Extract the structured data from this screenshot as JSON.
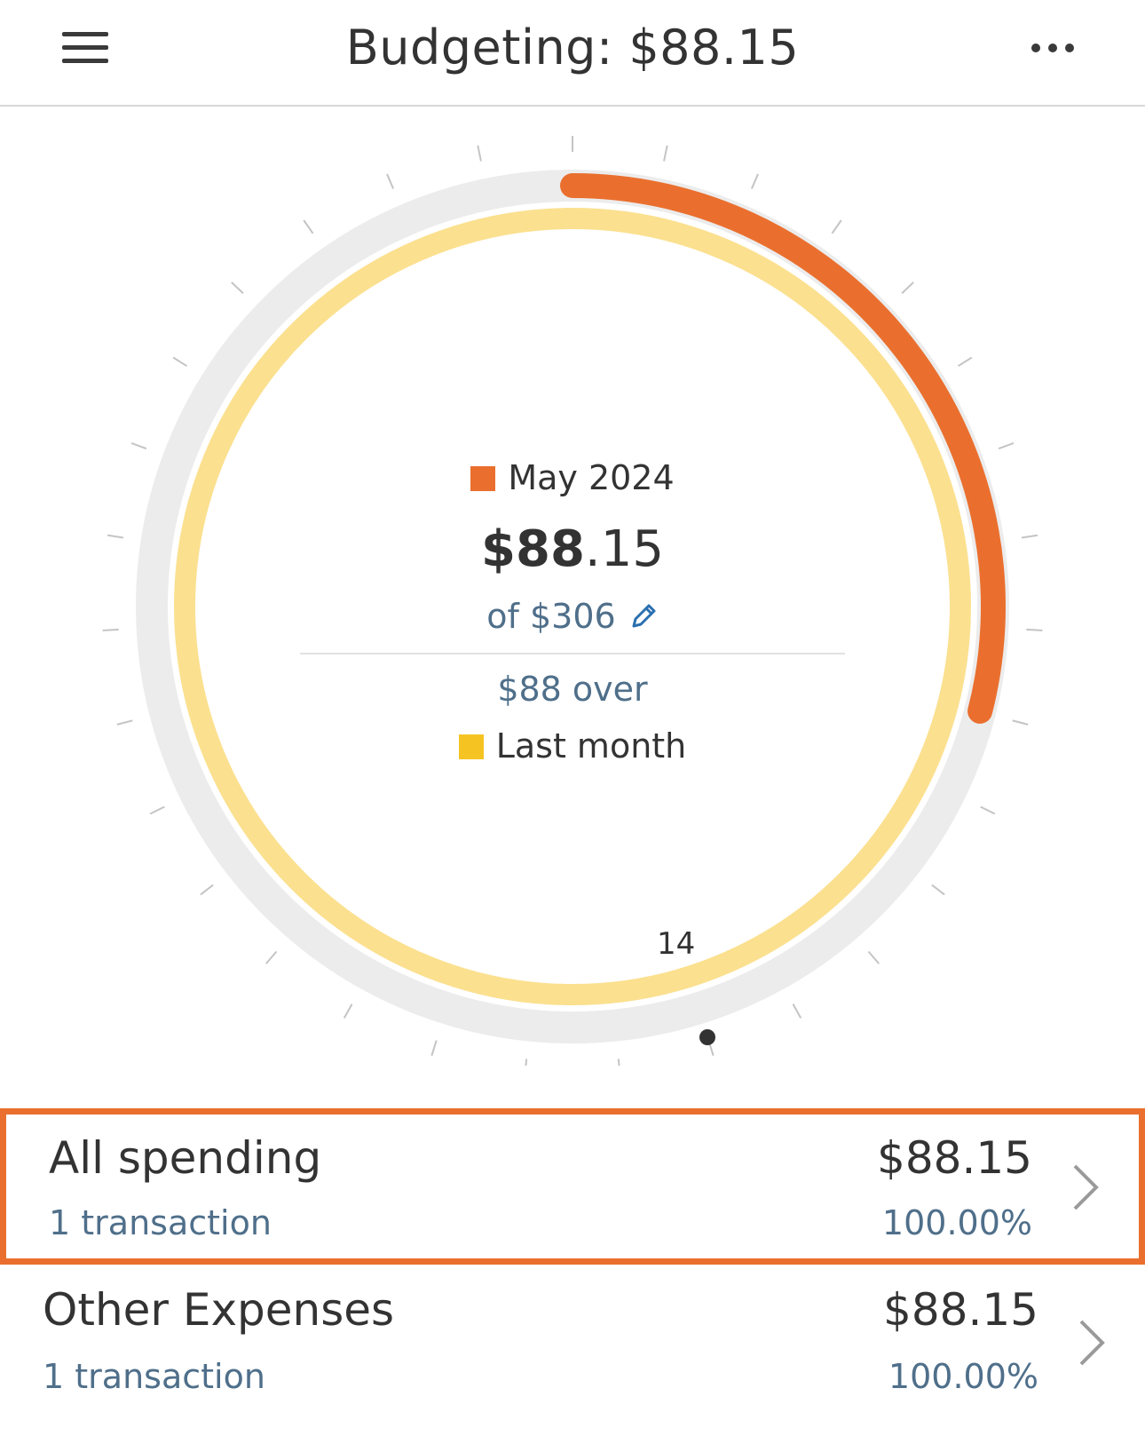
{
  "header": {
    "title": "Budgeting: $88.15",
    "menu_icon": "hamburger-menu-icon",
    "more_icon": "more-options-icon"
  },
  "dial": {
    "current_legend": "May 2024",
    "current_color": "#ea6f2e",
    "spent_amount_main": "$88",
    "spent_amount_cents": ".15",
    "budget_text": "of $306",
    "over_text": "$88 over",
    "last_month_legend": "Last month",
    "last_month_color": "#f5c423",
    "last_month_ring_color": "#fbe08f",
    "track_color": "#ececec",
    "current_progress_fraction": 0.29,
    "last_month_progress_fraction": 1.0,
    "day_label": "14",
    "edit_icon": "pencil-edit-icon"
  },
  "categories": [
    {
      "name": "All spending",
      "transactions": "1 transaction",
      "amount": "$88.15",
      "percent": "100.00%",
      "highlighted": true
    },
    {
      "name": "Other Expenses",
      "transactions": "1 transaction",
      "amount": "$88.15",
      "percent": "100.00%",
      "highlighted": false
    }
  ]
}
